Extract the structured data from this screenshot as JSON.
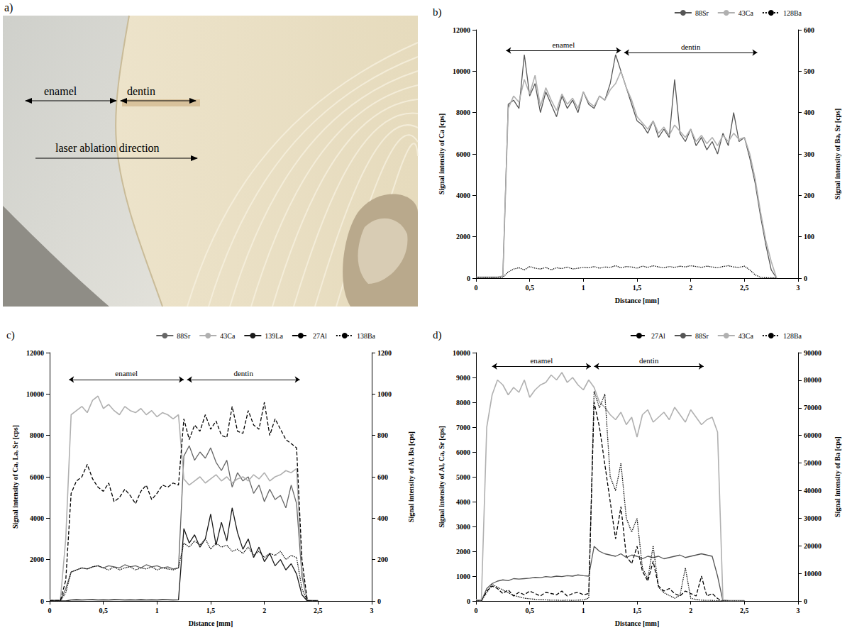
{
  "photo": {
    "label": "a)",
    "region_labels": [
      "enamel",
      "dentin"
    ],
    "arrow_label": "laser ablation direction"
  },
  "chart_data": [
    {
      "type": "line",
      "title": "b)",
      "xlabel": "Distance [mm]",
      "ylabel": "Signal intensity of Ca [cps]",
      "y2label": "Signal intensity of Ba, Sr [cps]",
      "xlim": [
        0,
        3
      ],
      "xticks": [
        0,
        {
          "value": 0.5,
          "label": "0,5"
        },
        1,
        {
          "value": 1.5,
          "label": "1,5"
        },
        2,
        {
          "value": 2.5,
          "label": "2,5"
        },
        3
      ],
      "ylim": [
        0,
        12000
      ],
      "yticks": [
        0,
        2000,
        4000,
        6000,
        8000,
        10000,
        12000
      ],
      "y2lim": [
        0,
        600
      ],
      "y2ticks": [
        0,
        100,
        200,
        300,
        400,
        500,
        600
      ],
      "grid": false,
      "legend": "top-right",
      "annotations": [
        {
          "text": "enamel",
          "x": [
            0.28,
            1.35
          ],
          "y": 11000
        },
        {
          "text": "dentin",
          "x": [
            1.38,
            2.62
          ],
          "y": 10900
        }
      ],
      "x": [
        0,
        0.05,
        0.1,
        0.15,
        0.2,
        0.25,
        0.3,
        0.35,
        0.4,
        0.45,
        0.5,
        0.55,
        0.6,
        0.65,
        0.7,
        0.75,
        0.8,
        0.85,
        0.9,
        0.95,
        1,
        1.05,
        1.1,
        1.15,
        1.2,
        1.25,
        1.3,
        1.35,
        1.4,
        1.45,
        1.5,
        1.55,
        1.6,
        1.65,
        1.7,
        1.75,
        1.8,
        1.85,
        1.9,
        1.95,
        2,
        2.05,
        2.1,
        2.15,
        2.2,
        2.25,
        2.3,
        2.35,
        2.4,
        2.45,
        2.5,
        2.55,
        2.6,
        2.65,
        2.7,
        2.75,
        2.8
      ],
      "series": [
        {
          "name": "88Sr",
          "color": "#555555",
          "line_style": "solid",
          "axis": "y2",
          "values": [
            2,
            2,
            2,
            2,
            2,
            5,
            420,
            430,
            410,
            540,
            440,
            470,
            400,
            450,
            420,
            390,
            440,
            410,
            430,
            400,
            450,
            420,
            410,
            440,
            430,
            470,
            540,
            500,
            460,
            420,
            380,
            370,
            350,
            380,
            340,
            360,
            340,
            480,
            350,
            330,
            360,
            320,
            340,
            310,
            330,
            300,
            350,
            320,
            400,
            330,
            340,
            290,
            230,
            150,
            80,
            20,
            0
          ]
        },
        {
          "name": "43Ca",
          "color": "#b0b0b0",
          "line_style": "solid",
          "values": [
            50,
            50,
            50,
            50,
            50,
            100,
            8200,
            8800,
            8500,
            9600,
            8900,
            9800,
            8300,
            9200,
            8600,
            8100,
            8900,
            8400,
            8700,
            8200,
            9000,
            8500,
            8300,
            8800,
            8600,
            9100,
            9400,
            10000,
            9200,
            8600,
            7800,
            7500,
            7200,
            7600,
            7000,
            7300,
            6900,
            7400,
            7100,
            6800,
            7200,
            6600,
            6900,
            6500,
            6800,
            6400,
            6900,
            6600,
            7000,
            6700,
            6800,
            6000,
            4800,
            3200,
            1800,
            800,
            0
          ]
        },
        {
          "name": "128Ba",
          "color": "#000000",
          "line_style": "dotted",
          "axis": "y2",
          "values": [
            2,
            2,
            2,
            2,
            2,
            2,
            15,
            22,
            25,
            20,
            28,
            24,
            22,
            26,
            20,
            25,
            23,
            27,
            22,
            24,
            26,
            25,
            28,
            24,
            27,
            26,
            30,
            25,
            28,
            27,
            24,
            29,
            26,
            30,
            27,
            25,
            28,
            26,
            29,
            27,
            30,
            28,
            26,
            29,
            27,
            25,
            28,
            30,
            27,
            26,
            29,
            20,
            8,
            2,
            1,
            1,
            0
          ]
        }
      ]
    },
    {
      "type": "line",
      "title": "c)",
      "xlabel": "Distance [mm]",
      "ylabel": "Signal intensity of Ca, La, Sr [cps]",
      "y2label": "Signal intensity of Al, Ba [cps]",
      "xlim": [
        0,
        3
      ],
      "xticks": [
        0,
        {
          "value": 0.5,
          "label": "0,5"
        },
        1,
        {
          "value": 1.5,
          "label": "1,5"
        },
        2,
        {
          "value": 2.5,
          "label": "2,5"
        },
        3
      ],
      "ylim": [
        0,
        12000
      ],
      "yticks": [
        0,
        2000,
        4000,
        6000,
        8000,
        10000,
        12000
      ],
      "y2lim": [
        0,
        1200
      ],
      "y2ticks": [
        0,
        200,
        400,
        600,
        800,
        1000,
        1200
      ],
      "grid": false,
      "legend": "top-right",
      "annotations": [
        {
          "text": "enamel",
          "x": [
            0.18,
            1.25
          ],
          "y": 10700
        },
        {
          "text": "dentin",
          "x": [
            1.28,
            2.33
          ],
          "y": 10700
        }
      ],
      "x": [
        0,
        0.05,
        0.1,
        0.15,
        0.2,
        0.25,
        0.3,
        0.35,
        0.4,
        0.45,
        0.5,
        0.55,
        0.6,
        0.65,
        0.7,
        0.75,
        0.8,
        0.85,
        0.9,
        0.95,
        1,
        1.05,
        1.1,
        1.15,
        1.2,
        1.25,
        1.3,
        1.35,
        1.4,
        1.45,
        1.5,
        1.55,
        1.6,
        1.65,
        1.7,
        1.75,
        1.8,
        1.85,
        1.9,
        1.95,
        2,
        2.05,
        2.1,
        2.15,
        2.2,
        2.25,
        2.3,
        2.35,
        2.4,
        2.45,
        2.5
      ],
      "series": [
        {
          "name": "88Sr",
          "color": "#666666",
          "line_style": "solid",
          "values": [
            10,
            10,
            10,
            600,
            1400,
            1500,
            1600,
            1550,
            1650,
            1700,
            1600,
            1700,
            1650,
            1600,
            1750,
            1650,
            1700,
            1600,
            1750,
            1650,
            1700,
            1600,
            1650,
            1550,
            1600,
            7000,
            7500,
            6800,
            7200,
            6900,
            7400,
            6700,
            6300,
            6800,
            5500,
            6200,
            5800,
            6000,
            5200,
            5600,
            4800,
            5400,
            4900,
            5100,
            4500,
            5600,
            4700,
            1200,
            20,
            10,
            10
          ]
        },
        {
          "name": "43Ca",
          "color": "#b0b0b0",
          "line_style": "solid",
          "values": [
            50,
            50,
            50,
            3000,
            9000,
            9200,
            9400,
            9100,
            9700,
            9900,
            9300,
            9500,
            9200,
            9000,
            9400,
            9200,
            9100,
            9300,
            9000,
            9200,
            8900,
            9100,
            9000,
            8800,
            9000,
            5900,
            5600,
            5800,
            6000,
            5700,
            5900,
            6100,
            5800,
            6000,
            5700,
            5900,
            6000,
            5800,
            6100,
            5900,
            6200,
            5800,
            6000,
            6100,
            6300,
            6200,
            6400,
            1500,
            50,
            30,
            30
          ]
        },
        {
          "name": "139La",
          "color": "#1a1a1a",
          "line_style": "solid",
          "values": [
            0,
            0,
            0,
            0,
            50,
            60,
            50,
            55,
            60,
            50,
            55,
            50,
            60,
            55,
            50,
            55,
            50,
            60,
            50,
            55,
            50,
            60,
            55,
            50,
            55,
            3500,
            2800,
            3200,
            2600,
            3000,
            4200,
            2700,
            3800,
            2900,
            4500,
            3300,
            2500,
            3000,
            2100,
            2600,
            1900,
            2300,
            1700,
            2000,
            1500,
            1800,
            1300,
            300,
            0,
            0,
            0
          ]
        },
        {
          "name": "27Al",
          "color": "#000000",
          "line_style": "dashed",
          "axis": "y2",
          "values": [
            2,
            2,
            2,
            100,
            520,
            580,
            600,
            660,
            590,
            550,
            530,
            570,
            480,
            500,
            540,
            510,
            470,
            530,
            560,
            490,
            520,
            560,
            550,
            570,
            560,
            880,
            780,
            850,
            820,
            900,
            830,
            870,
            800,
            790,
            940,
            820,
            810,
            920,
            850,
            830,
            960,
            800,
            880,
            830,
            780,
            760,
            740,
            200,
            2,
            0,
            0
          ]
        },
        {
          "name": "138Ba",
          "color": "#000000",
          "line_style": "dotted",
          "axis": "y2",
          "values": [
            0,
            0,
            0,
            40,
            140,
            150,
            160,
            155,
            165,
            170,
            160,
            150,
            165,
            150,
            160,
            165,
            150,
            160,
            155,
            165,
            150,
            160,
            155,
            150,
            160,
            280,
            260,
            290,
            270,
            300,
            250,
            280,
            260,
            270,
            240,
            250,
            230,
            260,
            220,
            240,
            210,
            230,
            220,
            240,
            200,
            220,
            210,
            60,
            0,
            0,
            0
          ]
        }
      ]
    },
    {
      "type": "line",
      "title": "d)",
      "xlabel": "Distance [mm]",
      "ylabel": "Signal intensity of Al, Ca, Sr [cps]",
      "y2label": "Signal intensity of Ba [cps]",
      "xlim": [
        0,
        3
      ],
      "xticks": [
        0,
        {
          "value": 0.5,
          "label": "0,5"
        },
        1,
        {
          "value": 1.5,
          "label": "1,5"
        },
        2,
        {
          "value": 2.5,
          "label": "2,5"
        },
        3
      ],
      "ylim": [
        0,
        10000
      ],
      "yticks": [
        0,
        1000,
        2000,
        3000,
        4000,
        5000,
        6000,
        7000,
        8000,
        9000,
        10000
      ],
      "y2lim": [
        0,
        90000
      ],
      "y2ticks": [
        0,
        10000,
        20000,
        30000,
        40000,
        50000,
        60000,
        70000,
        80000,
        90000
      ],
      "grid": false,
      "legend": "top-right",
      "annotations": [
        {
          "text": "enamel",
          "x": [
            0.15,
            1.07
          ],
          "y": 9450
        },
        {
          "text": "dentin",
          "x": [
            1.1,
            2.12
          ],
          "y": 9450
        }
      ],
      "x": [
        0,
        0.05,
        0.1,
        0.15,
        0.2,
        0.25,
        0.3,
        0.35,
        0.4,
        0.45,
        0.5,
        0.55,
        0.6,
        0.65,
        0.7,
        0.75,
        0.8,
        0.85,
        0.9,
        0.95,
        1,
        1.05,
        1.1,
        1.15,
        1.2,
        1.25,
        1.3,
        1.35,
        1.4,
        1.45,
        1.5,
        1.55,
        1.6,
        1.65,
        1.7,
        1.75,
        1.8,
        1.85,
        1.9,
        1.95,
        2,
        2.05,
        2.1,
        2.15,
        2.2,
        2.25,
        2.3,
        2.35,
        2.4,
        2.45,
        2.5
      ],
      "series": [
        {
          "name": "27Al",
          "color": "#000000",
          "line_style": "dashed",
          "values": [
            0,
            0,
            400,
            600,
            500,
            300,
            450,
            200,
            350,
            250,
            400,
            300,
            200,
            350,
            300,
            250,
            400,
            200,
            300,
            350,
            250,
            300,
            8000,
            7000,
            5500,
            4000,
            2500,
            3800,
            1800,
            1500,
            2200,
            1200,
            800,
            1600,
            600,
            400,
            500,
            300,
            200,
            400,
            300,
            200,
            1000,
            200,
            300,
            100,
            0,
            0,
            0,
            0,
            0
          ]
        },
        {
          "name": "88Sr",
          "color": "#555555",
          "line_style": "solid",
          "values": [
            0,
            0,
            500,
            700,
            800,
            850,
            820,
            900,
            880,
            900,
            920,
            950,
            940,
            980,
            960,
            1000,
            980,
            1020,
            1000,
            1050,
            1020,
            1000,
            2200,
            2000,
            1900,
            1850,
            1800,
            1900,
            1750,
            1850,
            1800,
            1700,
            1800,
            1750,
            1800,
            1700,
            1750,
            1800,
            1850,
            1750,
            1800,
            1850,
            1900,
            1850,
            1800,
            1000,
            0,
            0,
            0,
            0,
            0
          ]
        },
        {
          "name": "43Ca",
          "color": "#b0b0b0",
          "line_style": "solid",
          "values": [
            50,
            50,
            7000,
            8300,
            8900,
            8700,
            8300,
            8600,
            8400,
            8900,
            8200,
            8500,
            8700,
            8800,
            9100,
            8900,
            9200,
            8800,
            9000,
            8700,
            8500,
            8900,
            8600,
            8000,
            7800,
            7500,
            7300,
            7600,
            7100,
            7400,
            6600,
            7500,
            7700,
            7200,
            7400,
            7600,
            7300,
            7800,
            7500,
            7200,
            7700,
            7400,
            7100,
            7300,
            7400,
            6800,
            50,
            30,
            20,
            20,
            20
          ]
        },
        {
          "name": "128Ba",
          "color": "#000000",
          "line_style": "dotted",
          "axis": "y2",
          "values": [
            0,
            0,
            3000,
            6000,
            5000,
            4000,
            3000,
            2000,
            1500,
            1000,
            800,
            600,
            500,
            400,
            300,
            300,
            200,
            300,
            200,
            300,
            400,
            1000,
            76000,
            70000,
            75000,
            45000,
            40000,
            50000,
            30000,
            25000,
            30000,
            12000,
            8000,
            20000,
            5000,
            3000,
            2000,
            1000,
            2000,
            12000,
            1000,
            500,
            300,
            200,
            200,
            100,
            0,
            0,
            0,
            0,
            0
          ]
        }
      ]
    }
  ]
}
